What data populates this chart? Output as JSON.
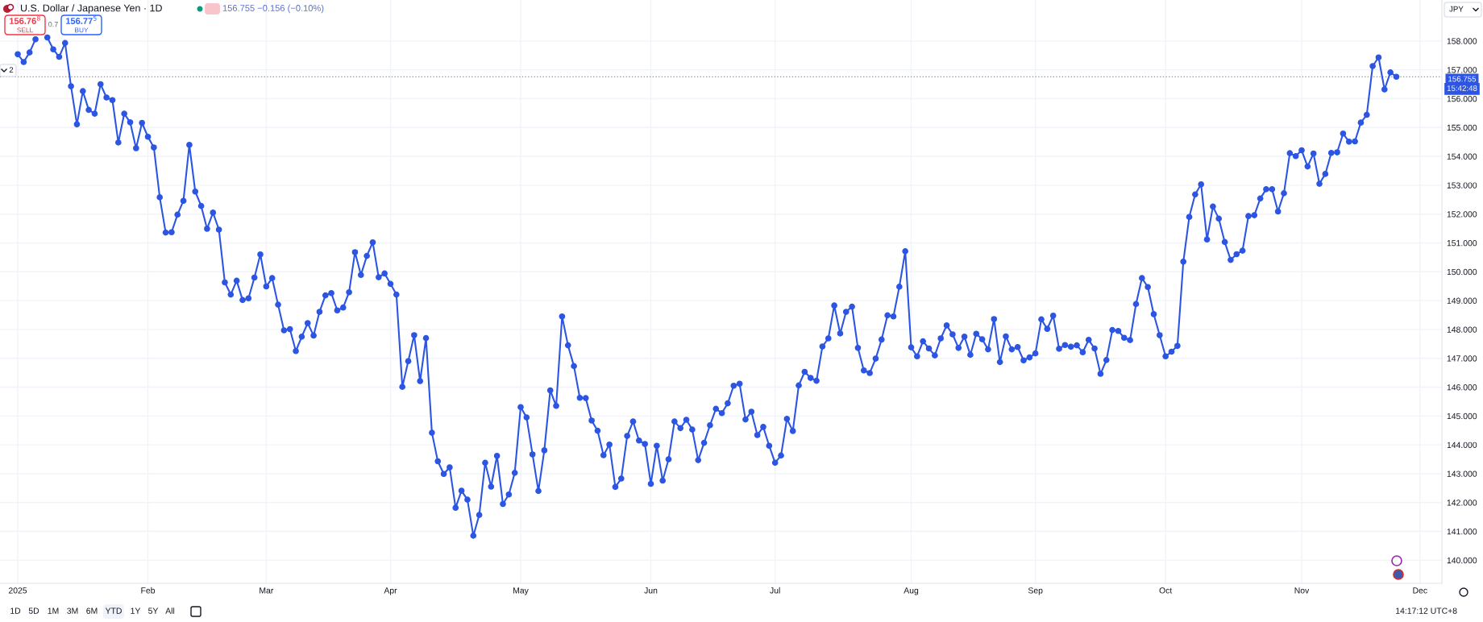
{
  "chart_data": {
    "type": "line",
    "title": "U.S. Dollar / Japanese Yen · 1D",
    "subtitle": "156.755 −0.156 (−0.10%)",
    "categories": [
      "2025",
      null,
      null,
      null,
      null,
      null,
      null,
      null,
      null,
      null,
      null,
      null,
      null,
      null,
      null,
      null,
      null,
      null,
      null,
      null,
      null,
      null,
      "Feb",
      null,
      null,
      null,
      null,
      null,
      null,
      null,
      null,
      null,
      null,
      null,
      null,
      null,
      null,
      null,
      null,
      null,
      null,
      null,
      "Mar",
      null,
      null,
      null,
      null,
      null,
      null,
      null,
      null,
      null,
      null,
      null,
      null,
      null,
      null,
      null,
      null,
      null,
      null,
      null,
      null,
      "Apr",
      null,
      null,
      null,
      null,
      null,
      null,
      null,
      null,
      null,
      null,
      null,
      null,
      null,
      null,
      null,
      null,
      null,
      null,
      null,
      null,
      null,
      "May",
      null,
      null,
      null,
      null,
      null,
      null,
      null,
      null,
      null,
      null,
      null,
      null,
      null,
      null,
      null,
      null,
      null,
      null,
      null,
      null,
      null,
      "Jun",
      null,
      null,
      null,
      null,
      null,
      null,
      null,
      null,
      null,
      null,
      null,
      null,
      null,
      null,
      null,
      null,
      null,
      null,
      null,
      null,
      "Jul",
      null,
      null,
      null,
      null,
      null,
      null,
      null,
      null,
      null,
      null,
      null,
      null,
      null,
      null,
      null,
      null,
      null,
      null,
      null,
      null,
      null,
      null,
      "Aug",
      null,
      null,
      null,
      null,
      null,
      null,
      null,
      null,
      null,
      null,
      null,
      null,
      null,
      null,
      null,
      null,
      null,
      null,
      null,
      null,
      "Sep",
      null,
      null,
      null,
      null,
      null,
      null,
      null,
      null,
      null,
      null,
      null,
      null,
      null,
      null,
      null,
      null,
      null,
      null,
      null,
      null,
      null,
      "Oct",
      null,
      null,
      null,
      null,
      null,
      null,
      null,
      null,
      null,
      null,
      null,
      null,
      null,
      null,
      null,
      null,
      null,
      null,
      null,
      null,
      null,
      null,
      "Nov",
      null,
      null,
      null,
      null,
      null,
      null,
      null,
      null,
      null,
      null,
      null,
      null,
      null,
      null,
      null,
      null,
      null,
      null,
      null,
      "Dec"
    ],
    "series": [
      {
        "color": "#2b55e2",
        "values": [
          157.54,
          157.27,
          157.6,
          158.06,
          null,
          158.12,
          157.71,
          157.45,
          157.93,
          156.43,
          155.11,
          156.26,
          155.61,
          155.48,
          156.5,
          156.04,
          155.95,
          154.48,
          155.48,
          155.18,
          154.28,
          155.16,
          154.68,
          154.31,
          152.58,
          151.36,
          151.37,
          151.98,
          152.46,
          154.4,
          152.78,
          152.28,
          151.49,
          152.05,
          151.46,
          149.63,
          149.21,
          149.69,
          149.02,
          149.08,
          149.8,
          150.6,
          149.49,
          149.78,
          148.86,
          147.97,
          148.01,
          147.25,
          147.75,
          148.22,
          147.79,
          148.61,
          149.18,
          149.26,
          148.66,
          148.76,
          149.29,
          150.68,
          149.89,
          150.55,
          151.02,
          149.81,
          149.94,
          149.58,
          149.21,
          146.01,
          146.9,
          147.8,
          146.21,
          147.7,
          144.42,
          143.43,
          142.99,
          143.22,
          141.82,
          142.41,
          142.1,
          140.85,
          141.57,
          143.38,
          142.55,
          143.62,
          141.95,
          142.28,
          143.03,
          145.31,
          144.95,
          143.67,
          142.4,
          143.81,
          145.89,
          145.35,
          148.45,
          147.45,
          146.73,
          145.63,
          145.62,
          144.84,
          144.49,
          143.64,
          144.01,
          142.54,
          142.83,
          144.31,
          144.81,
          144.15,
          144.03,
          142.65,
          143.97,
          142.76,
          143.5,
          144.81,
          144.58,
          144.87,
          144.53,
          143.47,
          144.07,
          144.68,
          145.25,
          145.1,
          145.44,
          146.05,
          146.12,
          144.88,
          145.15,
          144.34,
          144.62,
          143.97,
          143.38,
          143.63,
          144.9,
          144.48,
          146.06,
          146.53,
          146.32,
          146.22,
          147.41,
          147.69,
          148.83,
          147.86,
          148.61,
          148.79,
          147.36,
          146.58,
          146.49,
          146.99,
          147.65,
          148.49,
          148.45,
          149.48,
          150.71,
          147.38,
          147.07,
          147.59,
          147.34,
          147.1,
          147.69,
          148.14,
          147.83,
          147.36,
          147.75,
          147.12,
          147.85,
          147.66,
          147.31,
          148.36,
          146.87,
          147.76,
          147.31,
          147.39,
          146.93,
          147.03,
          147.17,
          148.35,
          148.02,
          148.48,
          147.33,
          147.46,
          147.4,
          147.45,
          147.21,
          147.64,
          147.34,
          146.46,
          146.94,
          147.98,
          147.95,
          147.71,
          147.63,
          148.88,
          149.78,
          149.47,
          148.53,
          147.8,
          147.07,
          147.23,
          147.43,
          150.35,
          151.9,
          152.68,
          153.03,
          151.12,
          152.26,
          151.84,
          151.03,
          150.41,
          150.61,
          150.73,
          151.93,
          151.96,
          152.54,
          152.86,
          152.86,
          152.09,
          152.72,
          154.11,
          154.01,
          154.21,
          153.65,
          154.1,
          153.05,
          153.39,
          154.12,
          154.14,
          154.79,
          154.51,
          154.52,
          155.17,
          155.44,
          157.13,
          157.43,
          156.32,
          156.91,
          156.76,
          null,
          null,
          null,
          null
        ]
      }
    ],
    "ylim": [
      139.2,
      159.42
    ],
    "yticks": [
      {
        "value": 140,
        "label": "140.000"
      },
      {
        "value": 141,
        "label": "141.000"
      },
      {
        "value": 142,
        "label": "142.000"
      },
      {
        "value": 143,
        "label": "143.000"
      },
      {
        "value": 144,
        "label": "144.000"
      },
      {
        "value": 145,
        "label": "145.000"
      },
      {
        "value": 146,
        "label": "146.000"
      },
      {
        "value": 147,
        "label": "147.000"
      },
      {
        "value": 148,
        "label": "148.000"
      },
      {
        "value": 149,
        "label": "149.000"
      },
      {
        "value": 150,
        "label": "150.000"
      },
      {
        "value": 151,
        "label": "151.000"
      },
      {
        "value": 152,
        "label": "152.000"
      },
      {
        "value": 153,
        "label": "153.000"
      },
      {
        "value": 154,
        "label": "154.000"
      },
      {
        "value": 155,
        "label": "155.000"
      },
      {
        "value": 156,
        "label": "156.000"
      },
      {
        "value": 157,
        "label": "157.000"
      },
      {
        "value": 158,
        "label": "158.000"
      }
    ],
    "grid": true,
    "marker": "circle",
    "line_style": "solid",
    "ref_lines": [
      {
        "axis": "y",
        "value": 156.755,
        "label": "156.755",
        "color": "#9598a1",
        "line_style": "dotted"
      }
    ],
    "annotations": [
      "156.76$^{8}$",
      "SELL",
      "0.7",
      "156.77$^{5}$",
      "BUY",
      "2",
      "JPY",
      "15:42:48",
      "1D",
      "5D",
      "1M",
      "3M",
      "6M",
      "YTD",
      "1Y",
      "5Y",
      "All",
      "14:17:12 UTC+8"
    ]
  }
}
